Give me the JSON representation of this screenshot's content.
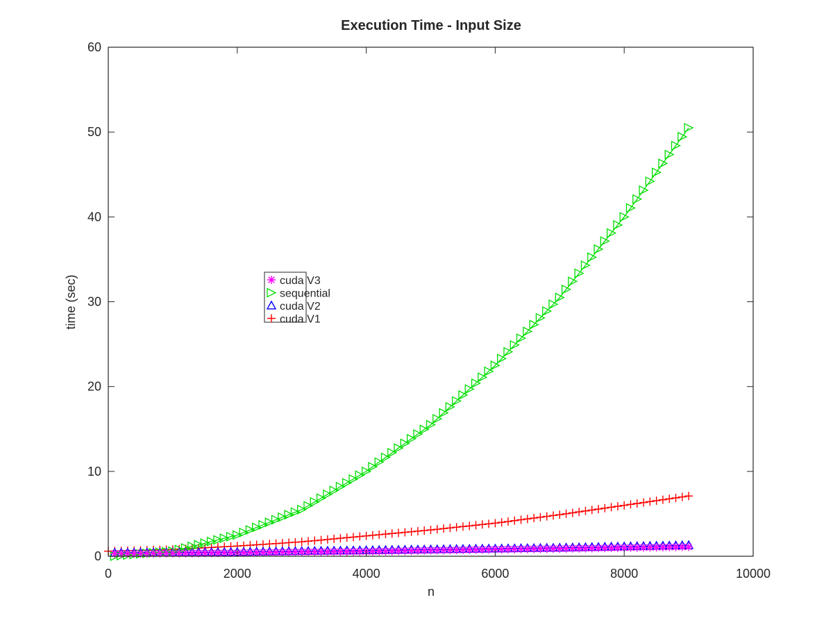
{
  "chart_data": {
    "type": "line",
    "title": "Execution Time - Input Size",
    "xlabel": "n",
    "ylabel": "time (sec)",
    "xlim": [
      0,
      10000
    ],
    "ylim": [
      0,
      60
    ],
    "xticks": [
      0,
      2000,
      4000,
      6000,
      8000,
      10000
    ],
    "yticks": [
      0,
      10,
      20,
      30,
      40,
      50,
      60
    ],
    "grid": false,
    "legend_position": "upper-left-center",
    "series": [
      {
        "name": "cuda V3",
        "color": "#ff00ff",
        "marker": "asterisk",
        "x_start": 100,
        "x_end": 9000,
        "x_step": 100,
        "anchor_x": [
          100,
          1000,
          2000,
          3000,
          4000,
          5000,
          6000,
          7000,
          8000,
          9000
        ],
        "anchor_y": [
          0.3,
          0.35,
          0.4,
          0.5,
          0.55,
          0.7,
          0.8,
          0.9,
          1.0,
          1.1
        ]
      },
      {
        "name": "sequential",
        "color": "#00dd00",
        "marker": "triangle-right",
        "x_start": 100,
        "x_end": 9000,
        "x_step": 100,
        "anchor_x": [
          100,
          1000,
          2000,
          3000,
          4000,
          5000,
          6000,
          7000,
          8000,
          9000
        ],
        "anchor_y": [
          0.0,
          0.6,
          2.5,
          5.5,
          10.0,
          15.5,
          22.5,
          30.5,
          40.0,
          50.5
        ]
      },
      {
        "name": "cuda V2",
        "color": "#0000ff",
        "marker": "triangle-up",
        "x_start": 100,
        "x_end": 9000,
        "x_step": 100,
        "anchor_x": [
          100,
          1000,
          2000,
          3000,
          4000,
          5000,
          6000,
          7000,
          8000,
          9000
        ],
        "anchor_y": [
          0.4,
          0.45,
          0.5,
          0.6,
          0.7,
          0.8,
          0.9,
          1.0,
          1.15,
          1.3
        ]
      },
      {
        "name": "cuda V1",
        "color": "#ff0000",
        "marker": "plus",
        "x_start": 0,
        "x_end": 9000,
        "x_step": 100,
        "anchor_x": [
          0,
          1000,
          2000,
          3000,
          4000,
          5000,
          6000,
          7000,
          8000,
          9000
        ],
        "anchor_y": [
          0.6,
          0.8,
          1.2,
          1.7,
          2.4,
          3.1,
          3.9,
          4.9,
          6.0,
          7.1
        ]
      }
    ]
  }
}
